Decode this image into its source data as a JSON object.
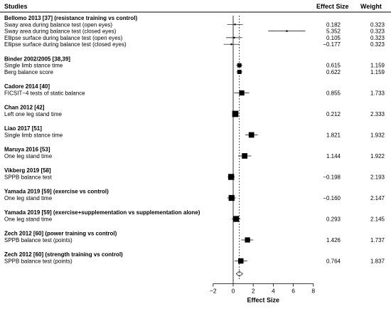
{
  "headers": {
    "studies": "Studies",
    "effect_size": "Effect Size",
    "weight": "Weight"
  },
  "chart_data": {
    "type": "forest",
    "xlabel": "Effect Size",
    "xlim": [
      -2,
      8
    ],
    "xticks": [
      "−2",
      "0",
      "2",
      "4",
      "6",
      "8"
    ],
    "xtick_values": [
      -2,
      0,
      2,
      4,
      6,
      8
    ],
    "reference_line": 0,
    "pooled_line": 0.62,
    "groups": [
      {
        "study": "Bellomo 2013 [37] (resistance training vs control)",
        "outcomes": [
          {
            "label": "Sway area during balance test (open eyes)",
            "es_text": "0.182",
            "weight_text": "0.323",
            "es": 0.182,
            "ci": [
              -0.6,
              0.96
            ],
            "weight": 0.323
          },
          {
            "label": "Sway area during balance test (closed eyes)",
            "es_text": "5.352",
            "weight_text": "0.323",
            "es": 5.352,
            "ci": [
              3.5,
              7.2
            ],
            "weight": 0.323
          },
          {
            "label": "Ellipse surface during balance test (open eyes)",
            "es_text": "0.105",
            "weight_text": "0.323",
            "es": 0.105,
            "ci": [
              -0.7,
              0.9
            ],
            "weight": 0.323
          },
          {
            "label": "Ellipse surface during balance test (closed eyes)",
            "es_text": "−0.177",
            "weight_text": "0.323",
            "es": -0.177,
            "ci": [
              -0.95,
              0.6
            ],
            "weight": 0.323
          }
        ]
      },
      {
        "study": "Binder 2002/2005 [38,39]",
        "outcomes": [
          {
            "label": "Single limb stance time",
            "es_text": "0.615",
            "weight_text": "1.159",
            "es": 0.615,
            "ci": [
              0.3,
              0.93
            ],
            "weight": 1.159
          },
          {
            "label": "Berg balance score",
            "es_text": "0.622",
            "weight_text": "1.159",
            "es": 0.622,
            "ci": [
              0.31,
              0.94
            ],
            "weight": 1.159
          }
        ]
      },
      {
        "study": "Cadore 2014 [40]",
        "outcomes": [
          {
            "label": "FICSIT−4 tests of static balance",
            "es_text": "0.855",
            "weight_text": "1.733",
            "es": 0.855,
            "ci": [
              0.1,
              1.6
            ],
            "weight": 1.733
          }
        ]
      },
      {
        "study": "Chan 2012 [42]",
        "outcomes": [
          {
            "label": "Left one leg stand time",
            "es_text": "0.212",
            "weight_text": "2.333",
            "es": 0.212,
            "ci": [
              -0.05,
              0.47
            ],
            "weight": 2.333
          }
        ]
      },
      {
        "study": "Liao 2017 [51]",
        "outcomes": [
          {
            "label": "Single limb stance time",
            "es_text": "1.821",
            "weight_text": "1.932",
            "es": 1.821,
            "ci": [
              1.2,
              2.45
            ],
            "weight": 1.932
          }
        ]
      },
      {
        "study": "Maruya 2016 [53]",
        "outcomes": [
          {
            "label": "One leg stand time",
            "es_text": "1.144",
            "weight_text": "1.922",
            "es": 1.144,
            "ci": [
              0.5,
              1.8
            ],
            "weight": 1.922
          }
        ]
      },
      {
        "study": "Vikberg 2019 [58]",
        "outcomes": [
          {
            "label": "SPPB balance test",
            "es_text": "−0.198",
            "weight_text": "2.193",
            "es": -0.198,
            "ci": [
              -0.55,
              0.15
            ],
            "weight": 2.193
          }
        ]
      },
      {
        "study": "Yamada 2019 [59] (exercise vs control)",
        "outcomes": [
          {
            "label": "One leg stand time",
            "es_text": "−0.160",
            "weight_text": "2.147",
            "es": -0.16,
            "ci": [
              -0.6,
              0.28
            ],
            "weight": 2.147
          }
        ]
      },
      {
        "study": "Yamada 2019 [59] (exercise+supplementation vs supplementation alone)",
        "outcomes": [
          {
            "label": "One leg stand time",
            "es_text": "0.293",
            "weight_text": "2.145",
            "es": 0.293,
            "ci": [
              -0.15,
              0.73
            ],
            "weight": 2.145
          }
        ]
      },
      {
        "study": "Zech 2012 [60] (power training vs control)",
        "outcomes": [
          {
            "label": "SPPB balance test (points)",
            "es_text": "1.426",
            "weight_text": "1.737",
            "es": 1.426,
            "ci": [
              0.8,
              2.0
            ],
            "weight": 1.737
          }
        ]
      },
      {
        "study": "Zech 2012 [60] (strength training vs control)",
        "outcomes": [
          {
            "label": "SPPB balance test (points)",
            "es_text": "0.764",
            "weight_text": "1.837",
            "es": 0.764,
            "ci": [
              0.15,
              1.4
            ],
            "weight": 1.837
          }
        ]
      }
    ],
    "pooled": {
      "es": 0.62,
      "ci": [
        0.3,
        0.95
      ]
    }
  }
}
